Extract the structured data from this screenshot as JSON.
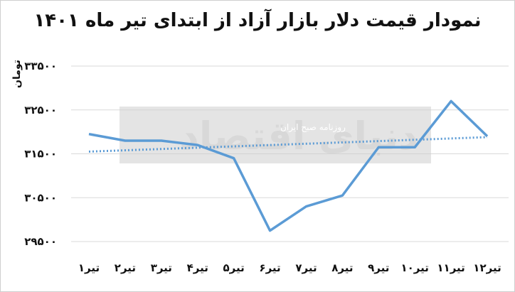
{
  "chart_data": {
    "type": "line",
    "title": "نمودار  قیمت دلار بازار آزاد از ابتدای تیر ماه ۱۴۰۱",
    "ylabel": "تومان",
    "xlabel": "",
    "categories": [
      "تیر۱",
      "تیر۲",
      "تیر۳",
      "تیر۴",
      "تیر۵",
      "تیر۶",
      "تیر۷",
      "تیر۸",
      "تیر۹",
      "تیر۱۰",
      "تیر۱۱",
      "تیر۱۲"
    ],
    "series": [
      {
        "values": [
          31950,
          31800,
          31800,
          31700,
          31400,
          29750,
          30300,
          30550,
          31650,
          31650,
          32700,
          31900
        ],
        "style": "solid",
        "color": "#5b9bd5"
      },
      {
        "values": [
          31550,
          31580,
          31610,
          31640,
          31670,
          31700,
          31730,
          31760,
          31790,
          31820,
          31850,
          31880
        ],
        "style": "dotted",
        "color": "#5b9bd5"
      }
    ],
    "yticks": [
      "۳۳۵۰۰",
      "۳۲۵۰۰",
      "۳۱۵۰۰",
      "۳۰۵۰۰",
      "۲۹۵۰۰"
    ],
    "ytick_values": [
      33500,
      32500,
      31500,
      30500,
      29500
    ],
    "ylim": [
      29500,
      33500
    ],
    "grid": true,
    "legend": "none"
  },
  "watermark": {
    "text": "دنیای اقتصاد",
    "subtext": "روزنامه صبح ایران"
  }
}
